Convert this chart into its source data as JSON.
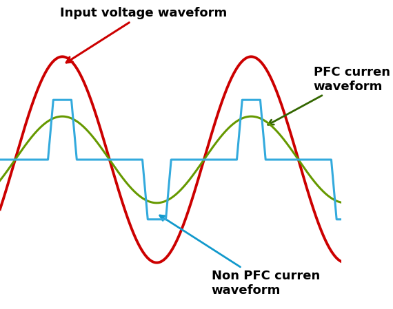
{
  "bg_color": "#ffffff",
  "voltage_color": "#cc0000",
  "pfc_color": "#669900",
  "nonpfc_color": "#33aadd",
  "voltage_amplitude": 1.0,
  "pfc_amplitude": 0.42,
  "period": 2.5,
  "annotation_voltage_text": "Input voltage waveform",
  "annotation_pfc_text": "PFC curren\nwaveform",
  "annotation_nonpfc_text": "Non PFC curren\nwaveform",
  "annotation_voltage_color": "#cc0000",
  "annotation_pfc_color": "#336600",
  "annotation_nonpfc_color": "#1199cc",
  "figsize": [
    5.7,
    4.49
  ],
  "dpi": 100
}
